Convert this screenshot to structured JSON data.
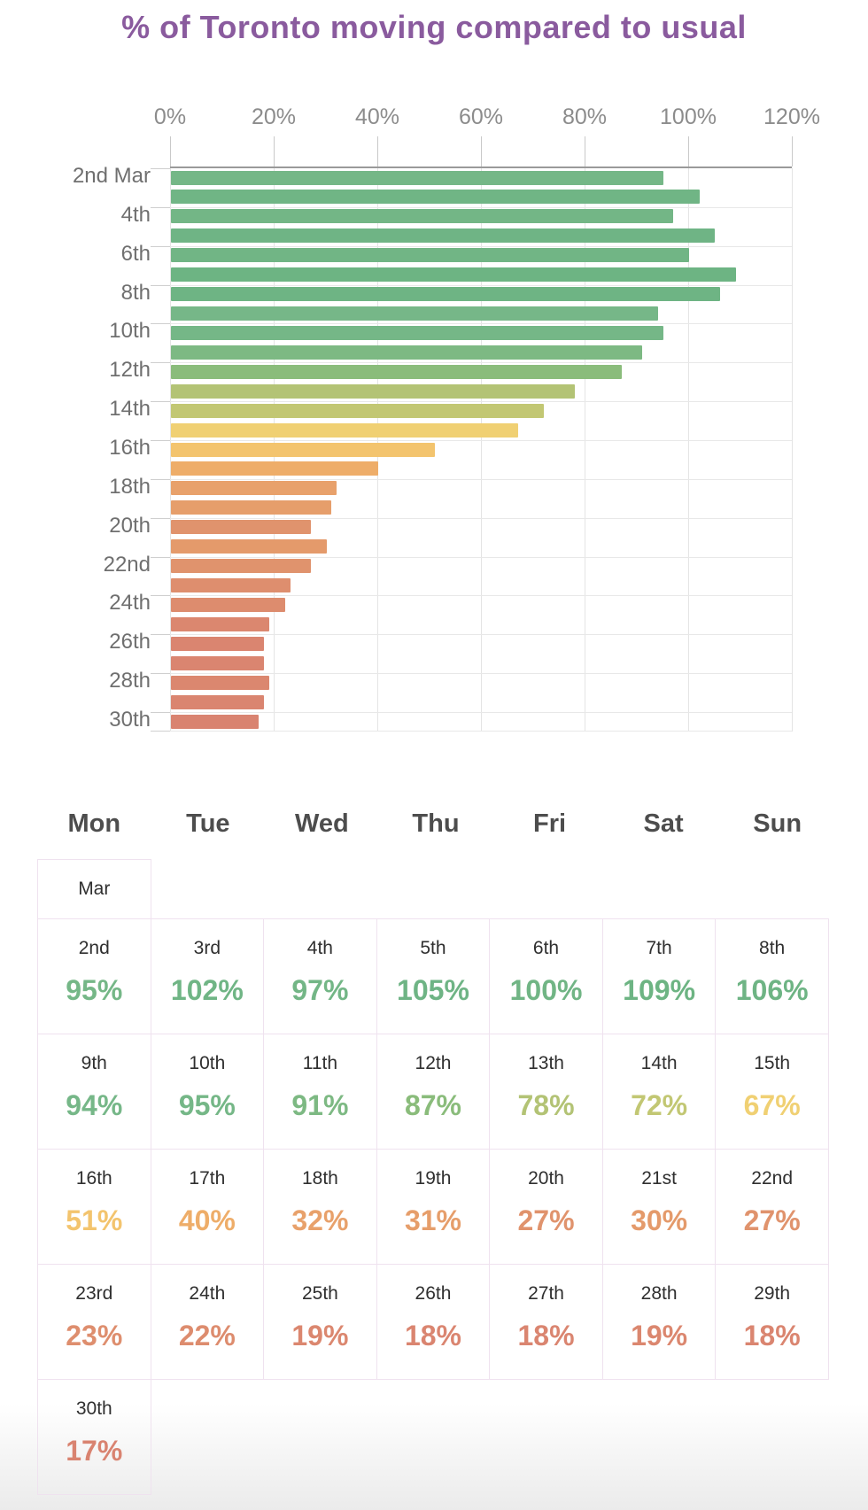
{
  "title": "% of Toronto moving compared to usual",
  "colors": {
    "title": "#8a5b9e",
    "axis_text": "#8c8c8c",
    "y_label_text": "#6f6f6f",
    "axis_line": "#9a9a9a",
    "table_border": "#efe2ef",
    "day_header_text": "#4d4d4d",
    "date_text": "#2f2f2f"
  },
  "chart_data": {
    "type": "bar",
    "orientation": "horizontal",
    "title": "% of Toronto moving compared to usual",
    "xlabel": "",
    "ylabel": "",
    "xlim": [
      0,
      120
    ],
    "x_tick_labels": [
      "0%",
      "20%",
      "40%",
      "60%",
      "80%",
      "100%",
      "120%"
    ],
    "y_axis_labels": [
      "2nd Mar",
      "4th",
      "6th",
      "8th",
      "10th",
      "12th",
      "14th",
      "16th",
      "18th",
      "20th",
      "22nd",
      "24th",
      "26th",
      "28th",
      "30th"
    ],
    "categories": [
      "2nd",
      "3rd",
      "4th",
      "5th",
      "6th",
      "7th",
      "8th",
      "9th",
      "10th",
      "11th",
      "12th",
      "13th",
      "14th",
      "15th",
      "16th",
      "17th",
      "18th",
      "19th",
      "20th",
      "21st",
      "22nd",
      "23rd",
      "24th",
      "25th",
      "26th",
      "27th",
      "28th",
      "29th",
      "30th"
    ],
    "values": [
      95,
      102,
      97,
      105,
      100,
      109,
      106,
      94,
      95,
      91,
      87,
      78,
      72,
      67,
      51,
      40,
      32,
      31,
      27,
      30,
      27,
      23,
      22,
      19,
      18,
      18,
      19,
      18,
      17
    ],
    "bar_colors": [
      "#75b787",
      "#70b585",
      "#73b686",
      "#6fb485",
      "#71b585",
      "#6db483",
      "#6eb484",
      "#76b788",
      "#75b787",
      "#7db983",
      "#8abc7b",
      "#b3c375",
      "#c2c773",
      "#f0d073",
      "#f3c46e",
      "#eead69",
      "#e8a16b",
      "#e69e6b",
      "#e0936d",
      "#e49a6b",
      "#e0936d",
      "#de8e6e",
      "#dd8c6e",
      "#db876f",
      "#da8570",
      "#da8570",
      "#db876f",
      "#da8570",
      "#d98370"
    ],
    "grid": true,
    "legend": false
  },
  "calendar": {
    "month_label": "Mar",
    "day_headers": [
      "Mon",
      "Tue",
      "Wed",
      "Thu",
      "Fri",
      "Sat",
      "Sun"
    ]
  }
}
